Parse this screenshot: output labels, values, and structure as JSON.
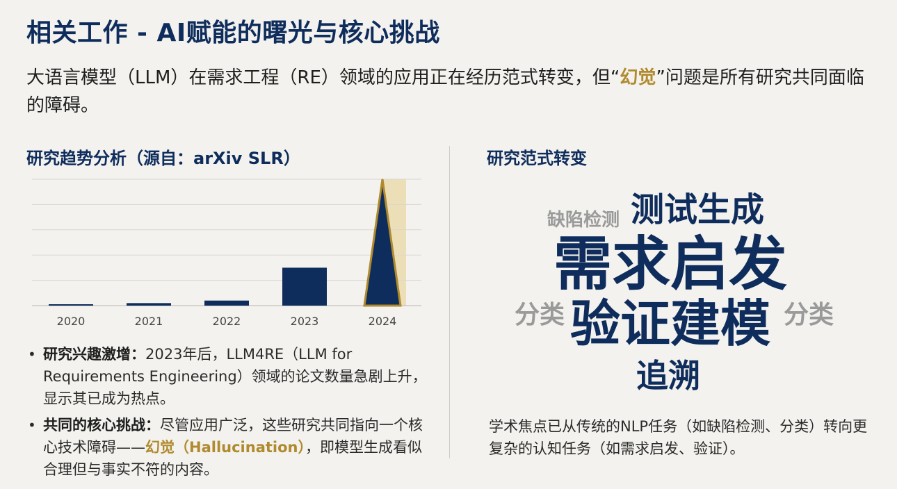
{
  "title": "相关工作 - AI赋能的曙光与核心挑战",
  "subtitle": {
    "before": "大语言模型（LLM）在需求工程（RE）领域的应用正在经历范式转变，但“",
    "highlight": "幻觉",
    "after": "”问题是所有研究共同面临的障碍。"
  },
  "left_section_title": "研究趋势分析（源自：arXiv SLR）",
  "right_section_title": "研究范式转变",
  "colors": {
    "navy": "#0f2d5c",
    "gold": "#b08a2e",
    "gray_word": "#9a9a9a",
    "peak_band": "#ecdfb8"
  },
  "chart_data": {
    "type": "bar",
    "categories": [
      "2020",
      "2021",
      "2022",
      "2023",
      "2024"
    ],
    "values": [
      1,
      2,
      4,
      30,
      100
    ],
    "ylim": [
      0,
      100
    ],
    "grid": true,
    "highlight_category": "2024",
    "highlight_style": "triangular peak with gold outline and gold background band"
  },
  "bullets": [
    {
      "bold": "研究兴趣激增：",
      "text": "2023年后，LLM4RE（LLM for Requirements Engineering）领域的论文数量急剧上升，显示其已成为热点。"
    },
    {
      "bold": "共同的核心挑战：",
      "text_before": "尽管应用广泛，这些研究共同指向一个核心技术障碍——",
      "highlight": "幻觉（Hallucination）",
      "text_after": "，即模型生成看似合理但与事实不符的内容。"
    }
  ],
  "word_cloud": {
    "test_generation": "测试生成",
    "defect_detection": "缺陷检测",
    "elicitation": "需求启发",
    "classification_left": "分类",
    "verification_modeling": "验证建模",
    "classification_right": "分类",
    "tracing": "追溯"
  },
  "right_description": "学术焦点已从传统的NLP任务（如缺陷检测、分类）转向更复杂的认知任务（如需求启发、验证）。"
}
